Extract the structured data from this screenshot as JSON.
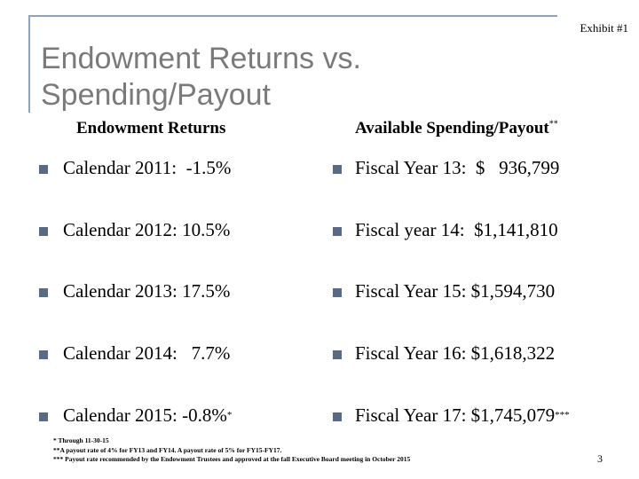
{
  "exhibit_label": "Exhibit #1",
  "title_line1": "Endowment Returns vs.",
  "title_line2": "Spending/Payout",
  "left_header": "Endowment Returns",
  "right_header": "Available Spending/Payout",
  "right_header_mark": "**",
  "returns": [
    {
      "label": "Calendar 2011:",
      "value": "  -1.5%",
      "mark": ""
    },
    {
      "label": "Calendar 2012:",
      "value": " 10.5%",
      "mark": ""
    },
    {
      "label": "Calendar 2013:",
      "value": " 17.5%",
      "mark": ""
    },
    {
      "label": "Calendar 2014:",
      "value": "   7.7%",
      "mark": ""
    },
    {
      "label": "Calendar 2015:",
      "value": " -0.8%",
      "mark": "*"
    }
  ],
  "payouts": [
    {
      "label": "Fiscal Year 13:",
      "value": "  $   936,799",
      "mark": ""
    },
    {
      "label": "Fiscal year 14:",
      "value": "  $1,141,810",
      "mark": ""
    },
    {
      "label": "Fiscal Year 15:",
      "value": " $1,594,730",
      "mark": ""
    },
    {
      "label": "Fiscal Year 16:",
      "value": " $1,618,322",
      "mark": ""
    },
    {
      "label": "Fiscal Year 17:",
      "value": " $1,745,079",
      "mark": "***"
    }
  ],
  "footnotes": [
    "* Through 11-30-15",
    "**A payout rate of 4% for FY13 and FY14. A payout rate of 5% for FY15-FY17.",
    "*** Payout rate recommended by the Endowment Trustees and approved at the fall Executive Board meeting in October 2015"
  ],
  "page_number": "3",
  "colors": {
    "bullet": "#596a85",
    "frame": "#8fa2bf",
    "title": "#7a7a7a"
  }
}
